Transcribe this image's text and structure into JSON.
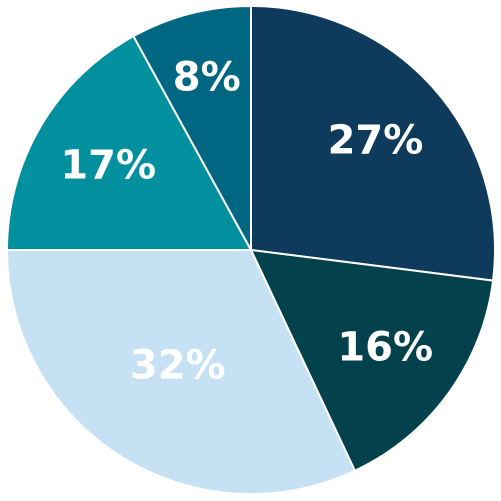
{
  "chart_data": {
    "type": "pie",
    "title": "",
    "start_angle_deg": 0,
    "direction": "clockwise",
    "slices": [
      {
        "label": "27%",
        "value": 27,
        "color": "#0e3a5c"
      },
      {
        "label": "16%",
        "value": 16,
        "color": "#03424d"
      },
      {
        "label": "32%",
        "value": 32,
        "color": "#c6e1f3"
      },
      {
        "label": "17%",
        "value": 17,
        "color": "#02909f"
      },
      {
        "label": "8%",
        "value": 8,
        "color": "#006782"
      }
    ],
    "legend": "none"
  }
}
